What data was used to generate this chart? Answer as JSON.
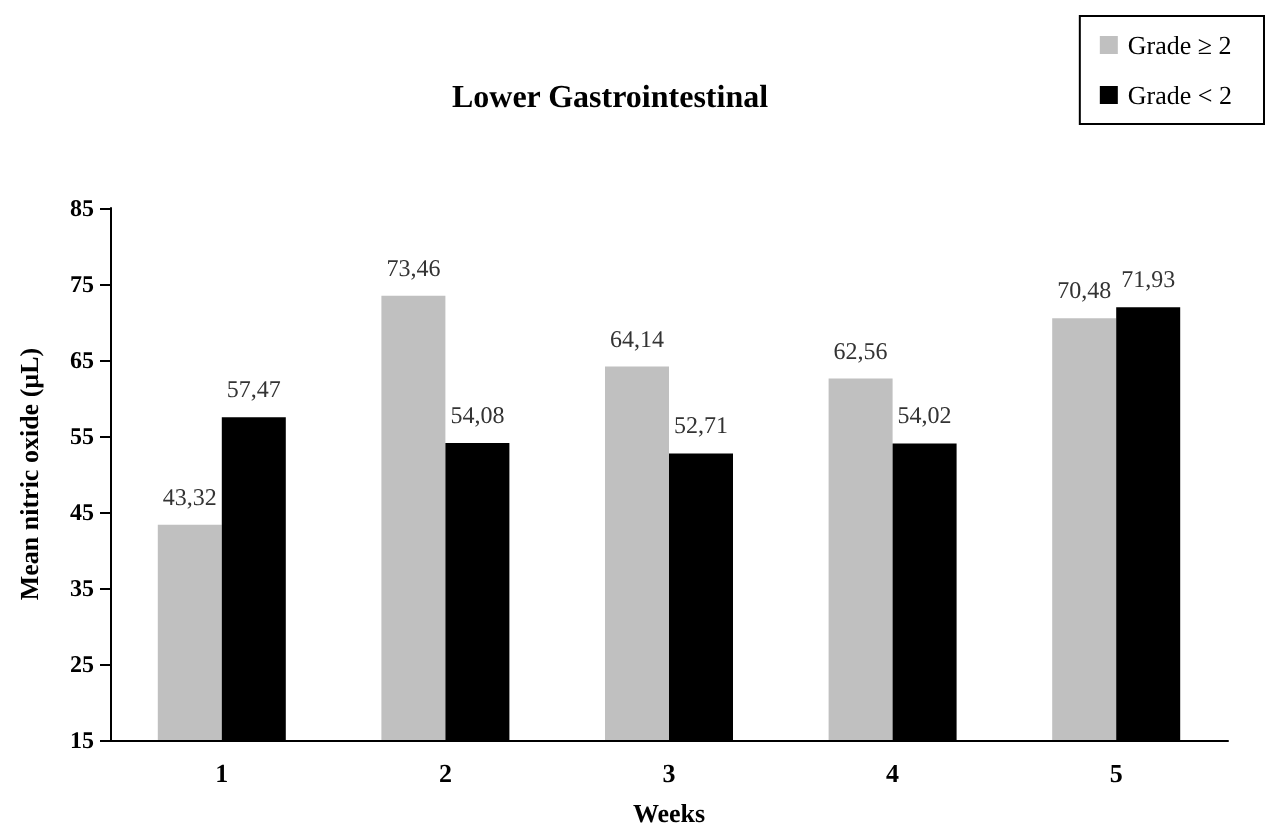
{
  "chart_data": {
    "type": "bar",
    "title": "Lower Gastrointestinal",
    "xlabel": "Weeks",
    "ylabel": "Mean nitric oxide (µL)",
    "categories": [
      "1",
      "2",
      "3",
      "4",
      "5"
    ],
    "series": [
      {
        "name": "Grade ≥ 2",
        "color": "#c0c0c0",
        "values": [
          43.32,
          73.46,
          64.14,
          62.56,
          70.48
        ],
        "value_labels": [
          "43,32",
          "73,46",
          "64,14",
          "62,56",
          "70,48"
        ]
      },
      {
        "name": "Grade < 2",
        "color": "#000000",
        "values": [
          57.47,
          54.08,
          52.71,
          54.02,
          71.93
        ],
        "value_labels": [
          "57,47",
          "54,08",
          "52,71",
          "54,02",
          "71,93"
        ]
      }
    ],
    "ylim": [
      15,
      85
    ],
    "yticks": [
      15,
      25,
      35,
      45,
      55,
      65,
      75,
      85
    ],
    "grid": false,
    "legend": "top right"
  }
}
